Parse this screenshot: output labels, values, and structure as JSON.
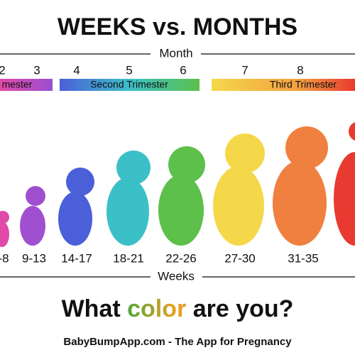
{
  "title": "WEEKS vs. MONTHS",
  "month_label": "Month",
  "months": [
    "2",
    "3",
    "4",
    "5",
    "6",
    "7",
    "8"
  ],
  "trimesters": [
    "mester",
    "Second Trimester",
    "Third Trimester"
  ],
  "weeks": [
    "-8",
    "9-13",
    "14-17",
    "18-21",
    "22-26",
    "27-30",
    "31-35"
  ],
  "weeks_label": "Weeks",
  "tagline": [
    "What",
    "color",
    "are you?"
  ],
  "footer": "BabyBumpApp.com - The App for Pregnancy"
}
